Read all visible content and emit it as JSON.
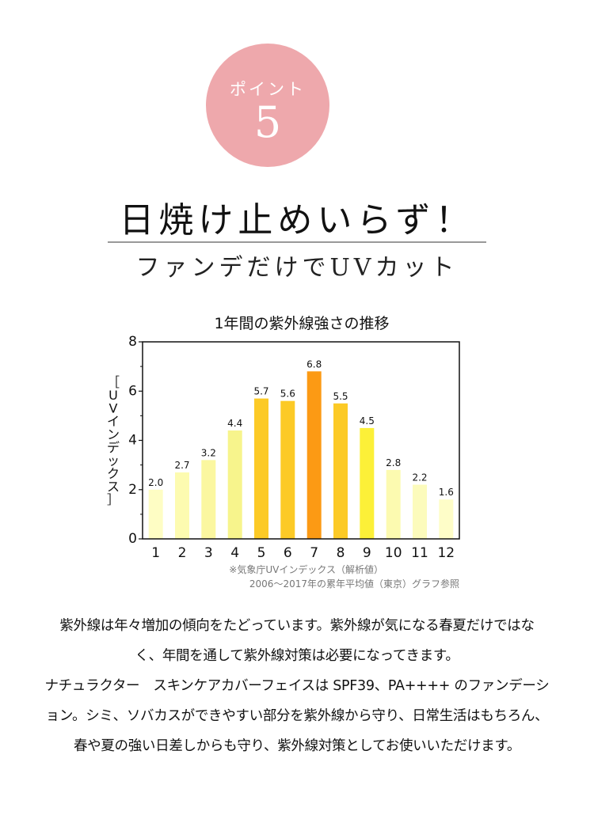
{
  "badge": {
    "label": "ポイント",
    "number": "5"
  },
  "headline": "日焼け止めいらず！",
  "subheadline": "ファンデだけでUVカット",
  "chart_data": {
    "type": "bar",
    "title": "1年間の紫外線強さの推移",
    "ylabel": "［UVインデックス］",
    "xlabel": "",
    "categories": [
      "1",
      "2",
      "3",
      "4",
      "5",
      "6",
      "7",
      "8",
      "9",
      "10",
      "11",
      "12"
    ],
    "values": [
      2.0,
      2.7,
      3.2,
      4.4,
      5.7,
      5.6,
      6.8,
      5.5,
      4.5,
      2.8,
      2.2,
      1.6
    ],
    "value_labels": [
      "2.0",
      "2.7",
      "3.2",
      "4.4",
      "5.7",
      "5.6",
      "6.8",
      "5.5",
      "4.5",
      "2.8",
      "2.2",
      "1.6"
    ],
    "bar_colors": [
      "#fefdc4",
      "#fdfbb0",
      "#fbf7a0",
      "#f7f48c",
      "#fcca26",
      "#fcca26",
      "#fc9a14",
      "#fcca26",
      "#fcf038",
      "#fcfab0",
      "#fcfbbc",
      "#fefdc8"
    ],
    "ylim": [
      0,
      8
    ],
    "yticks": [
      "0",
      "2",
      "4",
      "6",
      "8"
    ],
    "grid": false,
    "source_note": [
      "※気象庁UVインデックス（解析値）",
      "2006〜2017年の累年平均値（東京）グラフ参照"
    ]
  },
  "body_lines": [
    "紫外線は年々増加の傾向をたどっています。紫外線が気になる春夏だけではな",
    "く、年間を通して紫外線対策は必要になってきます。",
    "ナチュラクター　スキンケアカバーフェイスは SPF39、PA++++ のファンデーシ",
    "ョン。シミ、ソバカスができやすい部分を紫外線から守り、日常生活はもちろん、",
    "春や夏の強い日差しからも守り、紫外線対策としてお使いいただけます。"
  ]
}
